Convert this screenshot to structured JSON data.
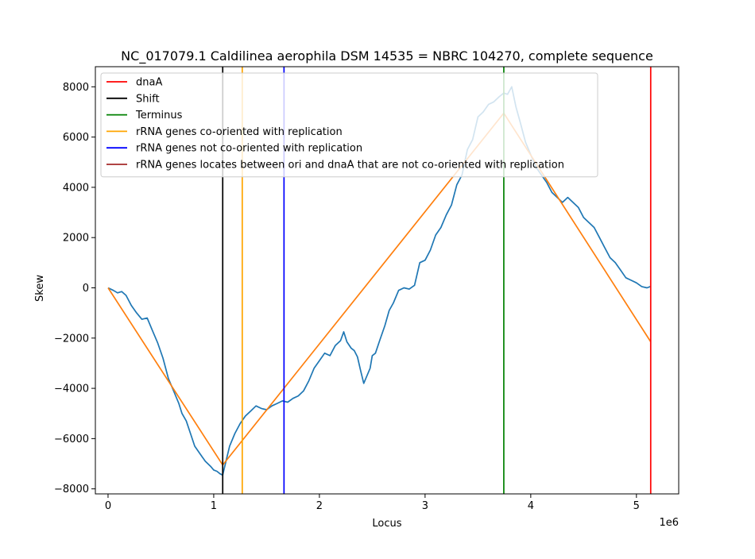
{
  "chart_data": {
    "type": "line",
    "title": "NC_017079.1 Caldilinea aerophila DSM 14535 = NBRC 104270, complete sequence",
    "xlabel": "Locus",
    "ylabel": "Skew",
    "x_offset_label": "1e6",
    "xlim": [
      -0.12,
      5.4
    ],
    "ylim": [
      -8200,
      8800
    ],
    "x_ticks": [
      0,
      1,
      2,
      3,
      4,
      5
    ],
    "x_tick_labels": [
      "0",
      "1",
      "2",
      "3",
      "4",
      "5"
    ],
    "y_ticks": [
      -8000,
      -6000,
      -4000,
      -2000,
      0,
      2000,
      4000,
      6000,
      8000
    ],
    "y_tick_labels": [
      "−8000",
      "−6000",
      "−4000",
      "−2000",
      "0",
      "2000",
      "4000",
      "6000",
      "8000"
    ],
    "legend_position": "top-left",
    "legend": [
      {
        "label": "dnaA",
        "color": "#ff0000"
      },
      {
        "label": "Shift",
        "color": "#000000"
      },
      {
        "label": "Terminus",
        "color": "#008000"
      },
      {
        "label": "rRNA genes co-oriented with replication",
        "color": "#ffa500"
      },
      {
        "label": "rRNA genes not co-oriented with replication",
        "color": "#0000ff"
      },
      {
        "label": "rRNA genes locates between ori and dnaA that are not co-oriented with replication",
        "color": "#a52a2a"
      }
    ],
    "vertical_lines": [
      {
        "kind": "Shift",
        "x": 1.085,
        "color": "#000000"
      },
      {
        "kind": "rRNA genes co-oriented with replication",
        "x": 1.27,
        "color": "#ffa500"
      },
      {
        "kind": "rRNA genes not co-oriented with replication",
        "x": 1.665,
        "color": "#0000ff"
      },
      {
        "kind": "Terminus",
        "x": 3.745,
        "color": "#008000"
      },
      {
        "kind": "dnaA",
        "x": 5.135,
        "color": "#ff0000"
      }
    ],
    "series": [
      {
        "color": "#1f77b4",
        "x": [
          0,
          0.05,
          0.09,
          0.13,
          0.17,
          0.22,
          0.27,
          0.32,
          0.37,
          0.42,
          0.47,
          0.52,
          0.57,
          0.62,
          0.67,
          0.7,
          0.74,
          0.78,
          0.82,
          0.87,
          0.92,
          0.97,
          1.0,
          1.03,
          1.06,
          1.085,
          1.11,
          1.15,
          1.2,
          1.25,
          1.3,
          1.35,
          1.4,
          1.45,
          1.5,
          1.55,
          1.6,
          1.65,
          1.7,
          1.75,
          1.8,
          1.85,
          1.9,
          1.95,
          2.0,
          2.05,
          2.1,
          2.15,
          2.2,
          2.23,
          2.26,
          2.3,
          2.33,
          2.36,
          2.39,
          2.42,
          2.45,
          2.48,
          2.5,
          2.53,
          2.57,
          2.62,
          2.66,
          2.7,
          2.75,
          2.8,
          2.85,
          2.9,
          2.95,
          3.0,
          3.05,
          3.1,
          3.15,
          3.2,
          3.25,
          3.3,
          3.35,
          3.4,
          3.45,
          3.5,
          3.55,
          3.6,
          3.65,
          3.7,
          3.745,
          3.78,
          3.82,
          3.86,
          3.9,
          3.95,
          4.0,
          4.05,
          4.1,
          4.15,
          4.2,
          4.25,
          4.3,
          4.35,
          4.4,
          4.45,
          4.5,
          4.55,
          4.6,
          4.65,
          4.7,
          4.75,
          4.8,
          4.85,
          4.9,
          4.95,
          5.0,
          5.05,
          5.1,
          5.13
        ],
        "y": [
          0,
          -100,
          -200,
          -150,
          -300,
          -700,
          -1000,
          -1250,
          -1200,
          -1700,
          -2200,
          -2800,
          -3600,
          -4100,
          -4600,
          -5000,
          -5300,
          -5800,
          -6300,
          -6600,
          -6900,
          -7100,
          -7250,
          -7300,
          -7400,
          -7450,
          -7000,
          -6300,
          -5800,
          -5400,
          -5100,
          -4900,
          -4700,
          -4800,
          -4850,
          -4700,
          -4600,
          -4500,
          -4550,
          -4400,
          -4300,
          -4100,
          -3700,
          -3200,
          -2900,
          -2600,
          -2700,
          -2300,
          -2100,
          -1750,
          -2150,
          -2400,
          -2500,
          -2750,
          -3300,
          -3800,
          -3500,
          -3200,
          -2700,
          -2600,
          -2100,
          -1500,
          -900,
          -600,
          -100,
          0,
          -50,
          100,
          1000,
          1100,
          1500,
          2100,
          2400,
          2900,
          3300,
          4100,
          4500,
          5500,
          5900,
          6800,
          7000,
          7300,
          7400,
          7600,
          7750,
          7700,
          8000,
          7200,
          6600,
          5800,
          5300,
          4800,
          4500,
          4200,
          3800,
          3600,
          3400,
          3600,
          3400,
          3200,
          2800,
          2600,
          2400,
          2000,
          1600,
          1200,
          1000,
          700,
          400,
          300,
          200,
          50,
          0,
          50
        ]
      },
      {
        "color": "#ff7f0e",
        "x": [
          0,
          1.085,
          3.745,
          5.135
        ],
        "y": [
          0,
          -7050,
          6950,
          -2150
        ]
      }
    ]
  }
}
